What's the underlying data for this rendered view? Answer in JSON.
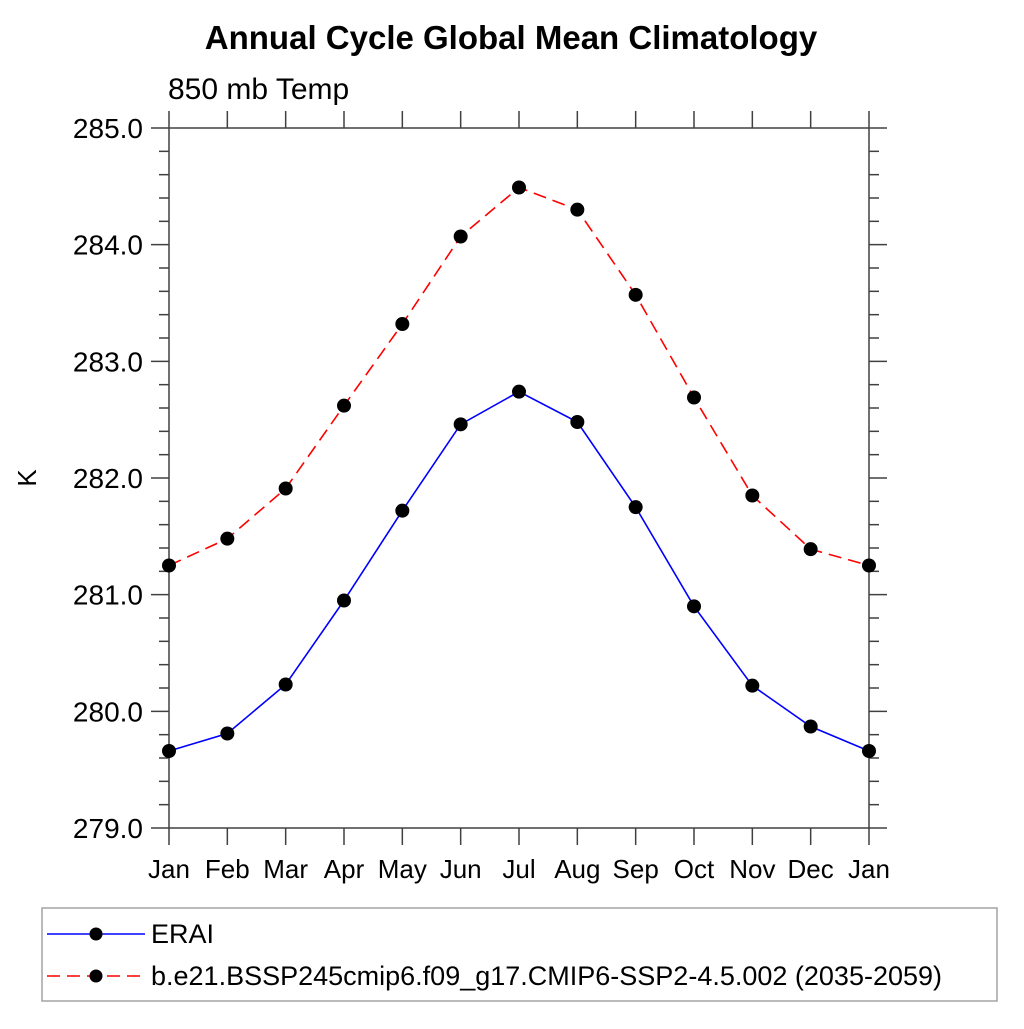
{
  "title": "Annual Cycle Global Mean Climatology",
  "subtitle": "850 mb Temp",
  "y_axis_label": "K",
  "colors": {
    "erai_line": "#0000ff",
    "model_line": "#ff0000",
    "marker": "#000000",
    "axis": "#404040",
    "legend_border": "#a3a3a3",
    "text": "#000000"
  },
  "chart_data": {
    "type": "line",
    "title": "Annual Cycle Global Mean Climatology",
    "subtitle": "850 mb Temp",
    "xlabel": "",
    "ylabel": "K",
    "categories": [
      "Jan",
      "Feb",
      "Mar",
      "Apr",
      "May",
      "Jun",
      "Jul",
      "Aug",
      "Sep",
      "Oct",
      "Nov",
      "Dec",
      "Jan"
    ],
    "ylim": [
      279.0,
      285.0
    ],
    "y_major_ticks": [
      279.0,
      280.0,
      281.0,
      282.0,
      283.0,
      284.0,
      285.0
    ],
    "y_minor_step": 0.2,
    "grid": false,
    "legend_position": "bottom-left",
    "series": [
      {
        "name": "ERAI",
        "color": "#0000ff",
        "line_style": "solid",
        "marker": "circle",
        "marker_color": "#000000",
        "values": [
          279.66,
          279.81,
          280.23,
          280.95,
          281.72,
          282.46,
          282.74,
          282.48,
          281.75,
          280.9,
          280.22,
          279.87,
          279.66
        ]
      },
      {
        "name": "b.e21.BSSP245cmip6.f09_g17.CMIP6-SSP2-4.5.002 (2035-2059)",
        "color": "#ff0000",
        "line_style": "dashed",
        "marker": "circle",
        "marker_color": "#000000",
        "values": [
          281.25,
          281.48,
          281.91,
          282.62,
          283.32,
          284.07,
          284.49,
          284.3,
          283.57,
          282.69,
          281.85,
          281.39,
          281.25
        ]
      }
    ]
  }
}
